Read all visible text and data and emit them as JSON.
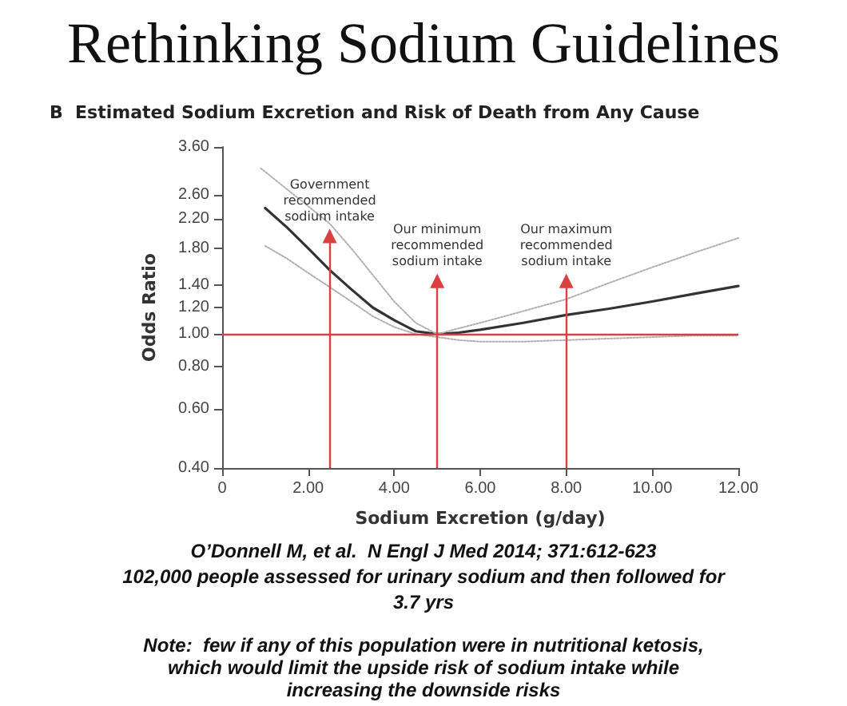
{
  "chart_data": {
    "type": "line",
    "title": "Rethinking Sodium Guidelines",
    "subtitle": "B  Estimated Sodium Excretion and Risk of Death from Any Cause",
    "xlabel": "Sodium Excretion (g/day)",
    "ylabel": "Odds Ratio",
    "log": "y",
    "marker": "none",
    "xlim": [
      0,
      12
    ],
    "xticks": [
      0,
      {
        "value": 2,
        "label": "2.00"
      },
      {
        "value": 4,
        "label": "4.00"
      },
      {
        "value": 6,
        "label": "6.00"
      },
      {
        "value": 8,
        "label": "8.00"
      },
      {
        "value": 10,
        "label": "10.00"
      },
      {
        "value": 12,
        "label": "12.00"
      }
    ],
    "ylim": [
      0.4,
      3.6
    ],
    "yticks": [
      {
        "value": 0.4,
        "label": "0.40"
      },
      {
        "value": 0.6,
        "label": "0.60"
      },
      {
        "value": 0.8,
        "label": "0.80"
      },
      {
        "value": 1,
        "label": "1.00"
      },
      {
        "value": 1.2,
        "label": "1.20"
      },
      {
        "value": 1.4,
        "label": "1.40"
      },
      {
        "value": 1.8,
        "label": "1.80"
      },
      {
        "value": 2.2,
        "label": "2.20"
      },
      {
        "value": 2.6,
        "label": "2.60"
      },
      {
        "value": 3.6,
        "label": "3.60"
      }
    ],
    "series": [
      {
        "color": "#333333",
        "line_style": "solid",
        "x": [
          1,
          1.5,
          2,
          2.5,
          3,
          3.5,
          4,
          4.5,
          5,
          5.5,
          6,
          7,
          8,
          9,
          10,
          11,
          12
        ],
        "values": [
          2.37,
          2.08,
          1.8,
          1.55,
          1.36,
          1.2,
          1.1,
          1.02,
          1.0,
          1.01,
          1.03,
          1.08,
          1.14,
          1.19,
          1.25,
          1.32,
          1.39
        ]
      },
      {
        "color": "#b0b0b0",
        "line_style": "dotted",
        "x": [
          0.9,
          1.5,
          2,
          2.5,
          3,
          3.5,
          4,
          4.5,
          5,
          5.5,
          6,
          7,
          8,
          9,
          10,
          11,
          12
        ],
        "values": [
          3.11,
          2.7,
          2.4,
          2.13,
          1.8,
          1.5,
          1.25,
          1.08,
          1.0,
          1.04,
          1.08,
          1.17,
          1.27,
          1.42,
          1.58,
          1.75,
          1.93
        ]
      },
      {
        "color": "#b0b0b0",
        "line_style": "dotted",
        "x": [
          1,
          1.5,
          2,
          2.5,
          3,
          3.5,
          4,
          4.5,
          5,
          5.5,
          6,
          7,
          8,
          9,
          10,
          11,
          12
        ],
        "values": [
          1.83,
          1.68,
          1.52,
          1.38,
          1.25,
          1.13,
          1.05,
          1.0,
          0.98,
          0.96,
          0.95,
          0.95,
          0.96,
          0.97,
          0.98,
          0.99,
          0.99
        ]
      }
    ],
    "ref_lines": [
      {
        "axis": "y",
        "value": 1,
        "color": "#d94040"
      },
      {
        "axis": "x",
        "value": 2.5,
        "label": "Government\nrecommended\nsodium intake",
        "color": "#d94040"
      },
      {
        "axis": "x",
        "value": 5,
        "label": "Our minimum\nrecommended\nsodium intake",
        "color": "#d94040"
      },
      {
        "axis": "x",
        "value": 8,
        "label": "Our maximum\nrecommended\nsodium intake",
        "color": "#d94040"
      }
    ],
    "annotations": [
      "O’Donnell M, et al.  N Engl J Med 2014; 371:612-623",
      "102,000 people assessed for urinary sodium and then followed for\n3.7 yrs",
      "Note:  few if any of this population were in nutritional ketosis,\nwhich would limit the upside risk of sodium intake while\nincreasing the downside risks"
    ]
  }
}
